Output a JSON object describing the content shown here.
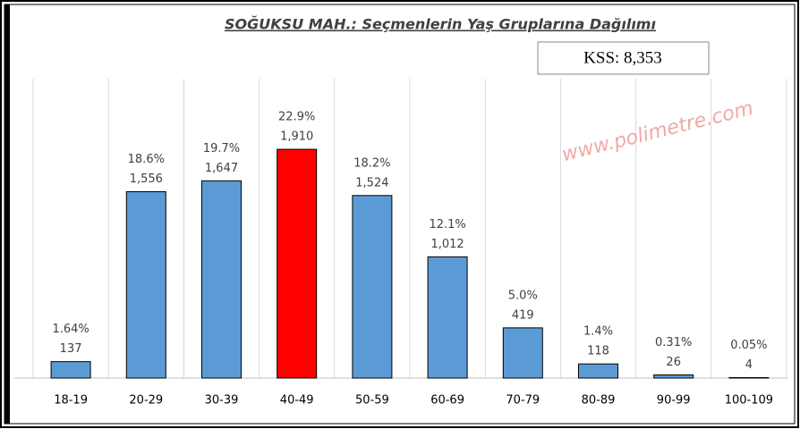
{
  "chart_data": {
    "type": "bar",
    "title": "SOĞUKSU MAH.: Seçmenlerin Yaş Gruplarına Dağılımı",
    "annotations": [
      "KSS: 8,353",
      "www.polimetre.com"
    ],
    "categories": [
      "18-19",
      "20-29",
      "30-39",
      "40-49",
      "50-59",
      "60-69",
      "70-79",
      "80-89",
      "90-99",
      "100-109"
    ],
    "values": [
      137,
      1556,
      1647,
      1910,
      1524,
      1012,
      419,
      118,
      26,
      4
    ],
    "value_labels": [
      "137",
      "1,556",
      "1,647",
      "1,910",
      "1,524",
      "1,012",
      "419",
      "118",
      "26",
      "4"
    ],
    "shares": [
      1.64,
      18.6,
      19.7,
      22.9,
      18.2,
      12.1,
      5.0,
      1.4,
      0.31,
      0.05
    ],
    "share_labels": [
      "1.64%",
      "18.6%",
      "19.7%",
      "22.9%",
      "18.2%",
      "12.1%",
      "5.0%",
      "1.4%",
      "0.31%",
      "0.05%"
    ],
    "colors": [
      "#5b9bd5",
      "#5b9bd5",
      "#5b9bd5",
      "#ff0000",
      "#5b9bd5",
      "#5b9bd5",
      "#5b9bd5",
      "#5b9bd5",
      "#5b9bd5",
      "#5b9bd5"
    ],
    "ylim": [
      0,
      2500
    ],
    "grid": true
  }
}
